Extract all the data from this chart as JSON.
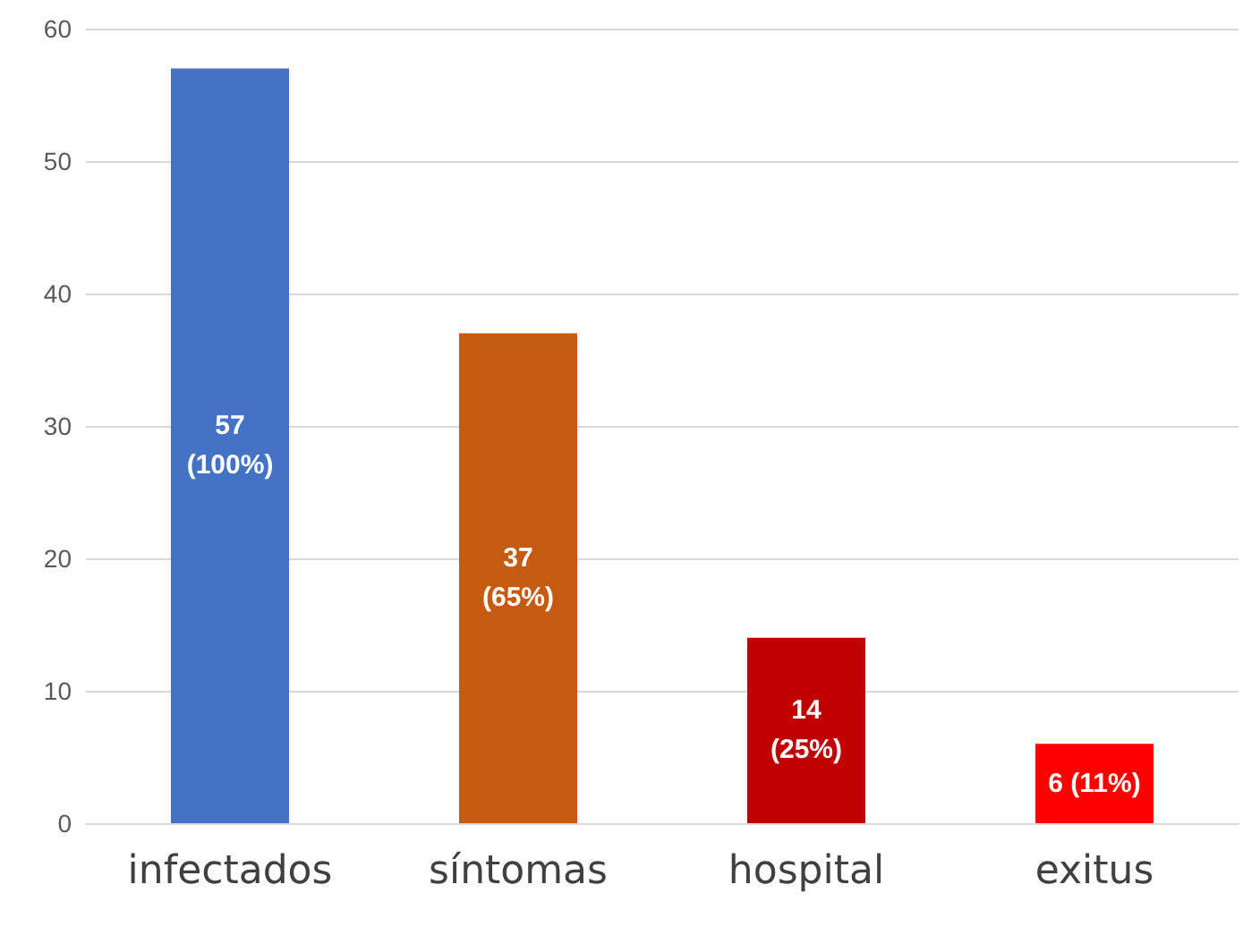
{
  "chart_data": {
    "type": "bar",
    "categories": [
      "infectados",
      "síntomas",
      "hospital",
      "exitus"
    ],
    "values": [
      57,
      37,
      14,
      6
    ],
    "colors": [
      "#4472c4",
      "#c55a11",
      "#c00000",
      "#ff0000"
    ],
    "value_labels": [
      "57\n(100%)",
      "37\n(65%)",
      "14\n(25%)",
      "6 (11%)"
    ],
    "ylim": [
      0,
      60
    ],
    "yticks": [
      0,
      10,
      20,
      30,
      40,
      50,
      60
    ],
    "grid": "y"
  }
}
